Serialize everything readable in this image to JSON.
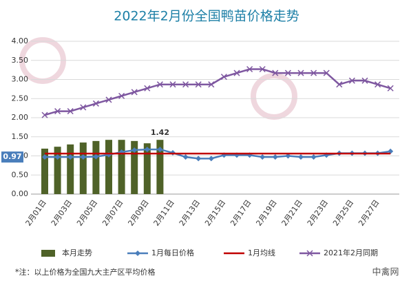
{
  "chart_data": {
    "type": "bar",
    "title": "2022年2月份全国鸭苗价格走势",
    "categories": [
      "2月01日",
      null,
      "2月03日",
      null,
      "2月05日",
      null,
      "2月07日",
      null,
      "2月09日",
      null,
      "2月11日",
      null,
      "2月13日",
      null,
      "2月15日",
      null,
      "2月17日",
      null,
      "2月19日",
      null,
      "2月21日",
      null,
      "2月23日",
      null,
      "2月25日",
      null,
      "2月27日",
      null
    ],
    "series": [
      {
        "name": "本月走势",
        "type": "bar",
        "color": "#4f6228",
        "values": [
          1.19,
          1.24,
          1.3,
          1.35,
          1.39,
          1.42,
          1.42,
          1.39,
          1.33,
          1.42,
          null,
          null,
          null,
          null,
          null,
          null,
          null,
          null,
          null,
          null,
          null,
          null,
          null,
          null,
          null,
          null,
          null,
          null
        ]
      },
      {
        "name": "1月每日价格",
        "type": "line",
        "marker": "diamond",
        "color": "#4a7ebb",
        "values": [
          0.97,
          0.97,
          0.97,
          0.97,
          0.98,
          1.03,
          1.1,
          1.15,
          1.17,
          1.17,
          1.08,
          0.97,
          0.93,
          0.93,
          1.02,
          1.02,
          1.02,
          0.97,
          0.97,
          1.0,
          0.97,
          0.97,
          1.02,
          1.07,
          1.07,
          1.07,
          1.07,
          1.12
        ]
      },
      {
        "name": "1月均线",
        "type": "line",
        "marker": "none",
        "color": "#c00000",
        "values": [
          1.06,
          1.06,
          1.06,
          1.06,
          1.06,
          1.06,
          1.06,
          1.06,
          1.06,
          1.06,
          1.06,
          1.06,
          1.06,
          1.06,
          1.06,
          1.06,
          1.06,
          1.06,
          1.06,
          1.06,
          1.06,
          1.06,
          1.06,
          1.06,
          1.06,
          1.06,
          1.06,
          1.06
        ]
      },
      {
        "name": "2021年2月同期",
        "type": "line",
        "marker": "x",
        "color": "#7e57a0",
        "values": [
          2.07,
          2.17,
          2.17,
          2.27,
          2.37,
          2.47,
          2.57,
          2.67,
          2.77,
          2.87,
          2.87,
          2.87,
          2.87,
          2.87,
          3.07,
          3.17,
          3.27,
          3.27,
          3.17,
          3.17,
          3.17,
          3.17,
          3.17,
          2.87,
          2.97,
          2.97,
          2.87,
          2.77
        ]
      }
    ],
    "labeled_points": [
      [
        0,
        9
      ],
      [
        1,
        0
      ]
    ],
    "ylim": [
      0,
      4
    ],
    "yticks": [
      {
        "value": 0,
        "label": "0.00"
      },
      {
        "value": 0.5,
        "label": "0.50"
      },
      {
        "value": 1,
        "label": "1.00"
      },
      {
        "value": 1.5,
        "label": "1.50"
      },
      {
        "value": 2,
        "label": "2.00"
      },
      {
        "value": 2.5,
        "label": "2.50"
      },
      {
        "value": 3,
        "label": "3.00"
      },
      {
        "value": 3.5,
        "label": "3.50"
      },
      {
        "value": 4,
        "label": "4.00"
      }
    ],
    "grid": true,
    "legend": "bottom",
    "footnote": "*注：以上价格为全国九大主产区平均价格",
    "watermark": "中禽网"
  }
}
